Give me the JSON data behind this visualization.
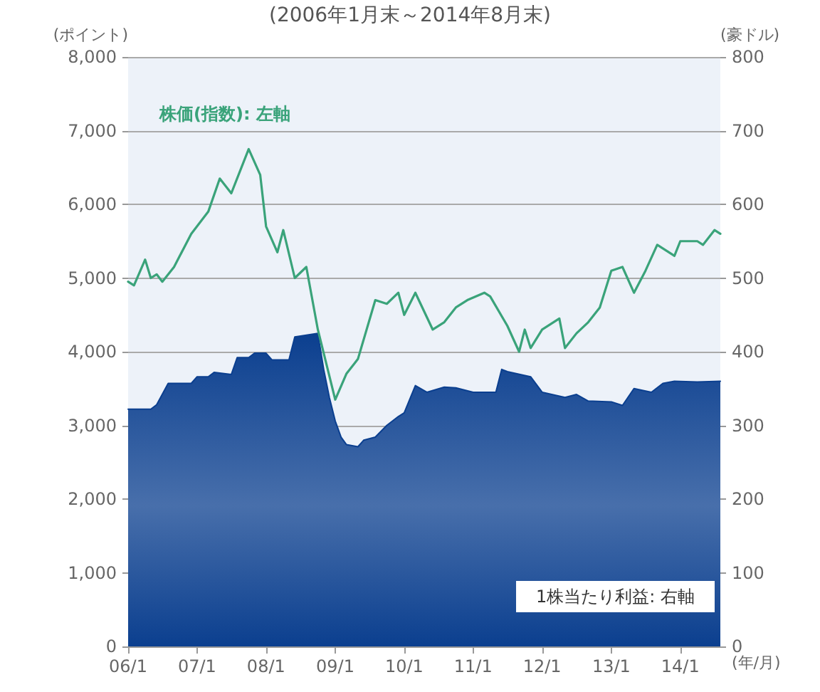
{
  "chart_data": {
    "type": "line",
    "subtitle": "(2006年1月末～2014年8月末)",
    "xlabel": "(年/月)",
    "ylabel": "(ポイント)",
    "y2label": "(豪ドル)",
    "xlim": [
      "2006-01",
      "2014-08"
    ],
    "xticks": [
      {
        "value": "2006-01",
        "label": "06/1"
      },
      {
        "value": "2007-01",
        "label": "07/1"
      },
      {
        "value": "2008-01",
        "label": "08/1"
      },
      {
        "value": "2009-01",
        "label": "09/1"
      },
      {
        "value": "2010-01",
        "label": "10/1"
      },
      {
        "value": "2011-01",
        "label": "11/1"
      },
      {
        "value": "2012-01",
        "label": "12/1"
      },
      {
        "value": "2013-01",
        "label": "13/1"
      },
      {
        "value": "2014-01",
        "label": "14/1"
      }
    ],
    "ylim": [
      0,
      8000
    ],
    "yticks": [
      0,
      {
        "value": 1000,
        "label": "1,000"
      },
      {
        "value": 2000,
        "label": "2,000"
      },
      {
        "value": 3000,
        "label": "3,000"
      },
      {
        "value": 4000,
        "label": "4,000"
      },
      {
        "value": 5000,
        "label": "5,000"
      },
      {
        "value": 6000,
        "label": "6,000"
      },
      {
        "value": 7000,
        "label": "7,000"
      },
      {
        "value": 8000,
        "label": "8,000"
      }
    ],
    "y2lim": [
      0,
      800
    ],
    "y2ticks": [
      0,
      100,
      200,
      300,
      400,
      500,
      600,
      700,
      800
    ],
    "grid": "y",
    "legend": false,
    "marker": "none",
    "line_style": "solid",
    "series": [
      {
        "name": "株価(指数): 左軸",
        "color": "#3aa37a",
        "x": [
          "2006-01",
          "2006-02",
          "2006-04",
          "2006-05",
          "2006-06",
          "2006-07",
          "2006-09",
          "2006-12",
          "2007-03",
          "2007-05",
          "2007-07",
          "2007-10",
          "2007-12",
          "2008-01",
          "2008-03",
          "2008-04",
          "2008-06",
          "2008-08",
          "2008-10",
          "2009-01",
          "2009-03",
          "2009-05",
          "2009-08",
          "2009-10",
          "2009-12",
          "2010-01",
          "2010-03",
          "2010-06",
          "2010-08",
          "2010-10",
          "2010-12",
          "2011-03",
          "2011-04",
          "2011-07",
          "2011-09",
          "2011-10",
          "2011-11",
          "2012-01",
          "2012-04",
          "2012-05",
          "2012-07",
          "2012-09",
          "2012-11",
          "2013-01",
          "2013-03",
          "2013-05",
          "2013-07",
          "2013-09",
          "2013-12",
          "2014-01",
          "2014-04",
          "2014-05",
          "2014-07",
          "2014-08"
        ],
        "values": [
          4950,
          4900,
          5250,
          5000,
          5050,
          4950,
          5150,
          5600,
          5900,
          6350,
          6150,
          6750,
          6400,
          5700,
          5350,
          5650,
          5000,
          5150,
          4300,
          3350,
          3700,
          3900,
          4700,
          4650,
          4800,
          4500,
          4800,
          4300,
          4400,
          4600,
          4700,
          4800,
          4750,
          4350,
          4000,
          4300,
          4050,
          4300,
          4450,
          4050,
          4250,
          4400,
          4600,
          5100,
          5150,
          4800,
          5100,
          5450,
          5300,
          5500,
          5500,
          5450,
          5650,
          5600
        ]
      },
      {
        "name": "1株当たり利益: 右軸",
        "type": "area",
        "axis": "y2",
        "color": "#0b3f8f",
        "x": [
          "2006-01",
          "2006-05",
          "2006-06",
          "2006-08",
          "2006-12",
          "2007-01",
          "2007-03",
          "2007-04",
          "2007-07",
          "2007-08",
          "2007-10",
          "2007-11",
          "2008-01",
          "2008-02",
          "2008-05",
          "2008-06",
          "2008-10",
          "2008-11",
          "2008-12",
          "2009-01",
          "2009-02",
          "2009-03",
          "2009-05",
          "2009-06",
          "2009-08",
          "2009-10",
          "2009-12",
          "2010-01",
          "2010-03",
          "2010-05",
          "2010-08",
          "2010-10",
          "2011-01",
          "2011-05",
          "2011-06",
          "2011-07",
          "2011-11",
          "2012-01",
          "2012-05",
          "2012-07",
          "2012-09",
          "2013-01",
          "2013-03",
          "2013-05",
          "2013-08",
          "2013-10",
          "2013-12",
          "2014-04",
          "2014-08"
        ],
        "values": [
          322,
          322,
          328,
          357,
          357,
          366,
          366,
          372,
          369,
          392,
          392,
          398,
          398,
          389,
          389,
          420,
          425,
          376,
          338,
          306,
          284,
          274,
          271,
          280,
          284,
          300,
          312,
          317,
          354,
          345,
          352,
          351,
          345,
          345,
          376,
          373,
          366,
          345,
          338,
          342,
          333,
          332,
          327,
          350,
          345,
          357,
          360,
          359,
          360
        ]
      }
    ]
  }
}
